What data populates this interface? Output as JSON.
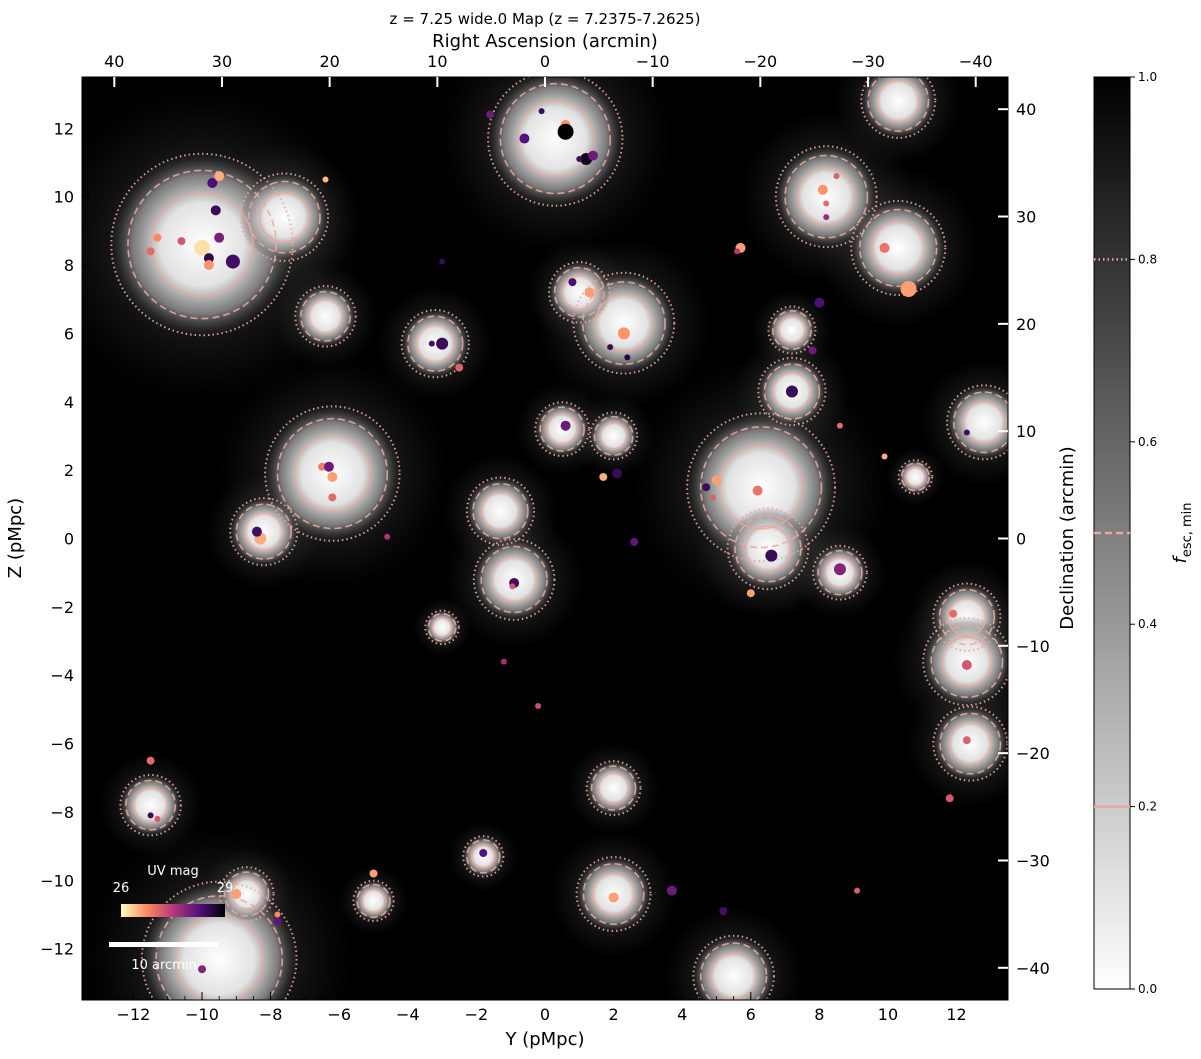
{
  "chart_data": {
    "type": "heatmap",
    "title": "z = 7.25 wide.0 Map (z = 7.2375-7.2625)",
    "xlabel": "Y (pMpc)",
    "ylabel": "Z (pMpc)",
    "top_xlabel": "Right Ascension (arcmin)",
    "right_ylabel": "Declination (arcmin)",
    "xlim": [
      -13.5,
      13.5
    ],
    "ylim": [
      -13.5,
      13.5
    ],
    "x_ticks": [
      "−12",
      "−10",
      "−8",
      "−6",
      "−4",
      "−2",
      "0",
      "2",
      "4",
      "6",
      "8",
      "10",
      "12"
    ],
    "y_ticks": [
      "−12",
      "−10",
      "−8",
      "−6",
      "−4",
      "−2",
      "0",
      "2",
      "4",
      "6",
      "8",
      "10",
      "12"
    ],
    "top_ticks": [
      "40",
      "30",
      "20",
      "10",
      "0",
      "−10",
      "−20",
      "−30",
      "−40"
    ],
    "right_ticks": [
      "40",
      "30",
      "20",
      "10",
      "0",
      "−10",
      "−20",
      "−30",
      "−40"
    ],
    "colorbar": {
      "label": "f_esc, min",
      "label_main": "f",
      "label_sub": "esc, min",
      "range": [
        0,
        1
      ],
      "ticks": [
        "0.0",
        "0.2",
        "0.4",
        "0.6",
        "0.8",
        "1.0"
      ],
      "contour_levels": [
        0.2,
        0.5,
        0.8
      ],
      "contour_styles": [
        "solid",
        "dashed",
        "dotted"
      ]
    },
    "uv_colorbar": {
      "label": "UV mag",
      "min": "26",
      "max": "29"
    },
    "scale_bar": {
      "label": "10 arcmin"
    },
    "regions": [
      {
        "x": -10.0,
        "y": 8.6,
        "r": 2.7
      },
      {
        "x": -7.6,
        "y": 9.4,
        "r": 1.3
      },
      {
        "x": 0.3,
        "y": 11.7,
        "r": 2.0
      },
      {
        "x": -6.2,
        "y": 1.9,
        "r": 2.0
      },
      {
        "x": -8.2,
        "y": 0.2,
        "r": 1.0
      },
      {
        "x": 2.3,
        "y": 6.3,
        "r": 1.5
      },
      {
        "x": 1.0,
        "y": 7.2,
        "r": 0.9
      },
      {
        "x": 6.3,
        "y": 1.5,
        "r": 2.2
      },
      {
        "x": 6.5,
        "y": -0.3,
        "r": 1.2
      },
      {
        "x": 8.2,
        "y": 10.0,
        "r": 1.5
      },
      {
        "x": 10.3,
        "y": 12.8,
        "r": 1.1
      },
      {
        "x": 10.3,
        "y": 8.5,
        "r": 1.4
      },
      {
        "x": 7.2,
        "y": 4.3,
        "r": 1.0
      },
      {
        "x": 7.2,
        "y": 6.1,
        "r": 0.7
      },
      {
        "x": 12.8,
        "y": 3.4,
        "r": 1.1
      },
      {
        "x": 12.3,
        "y": -2.3,
        "r": 1.0
      },
      {
        "x": 12.3,
        "y": -3.6,
        "r": 1.3
      },
      {
        "x": 12.4,
        "y": -6.0,
        "r": 1.1
      },
      {
        "x": -0.9,
        "y": -1.2,
        "r": 1.2
      },
      {
        "x": -1.3,
        "y": 0.8,
        "r": 1.0
      },
      {
        "x": -3.2,
        "y": 5.7,
        "r": 1.0
      },
      {
        "x": -6.4,
        "y": 6.5,
        "r": 0.9
      },
      {
        "x": -11.5,
        "y": -7.8,
        "r": 0.9
      },
      {
        "x": -9.5,
        "y": -12.3,
        "r": 2.3
      },
      {
        "x": -8.7,
        "y": -10.4,
        "r": 0.8
      },
      {
        "x": 2.0,
        "y": -10.4,
        "r": 1.1
      },
      {
        "x": 5.5,
        "y": -12.8,
        "r": 1.2
      },
      {
        "x": 2.0,
        "y": 3.0,
        "r": 0.7
      },
      {
        "x": 0.5,
        "y": 3.2,
        "r": 0.8
      },
      {
        "x": 8.6,
        "y": -1.0,
        "r": 0.8
      },
      {
        "x": 10.8,
        "y": 1.8,
        "r": 0.5
      },
      {
        "x": -1.8,
        "y": -9.3,
        "r": 0.6
      },
      {
        "x": 2.0,
        "y": -7.3,
        "r": 0.8
      },
      {
        "x": -5.0,
        "y": -10.6,
        "r": 0.6
      },
      {
        "x": -3.0,
        "y": -2.6,
        "r": 0.5
      }
    ],
    "galaxies": [
      {
        "x": -10.0,
        "y": 8.5,
        "mag": 26.2,
        "s": 8
      },
      {
        "x": -10.6,
        "y": 8.7,
        "mag": 27.4,
        "s": 4
      },
      {
        "x": -9.8,
        "y": 8.2,
        "mag": 29.0,
        "s": 5
      },
      {
        "x": -9.1,
        "y": 8.1,
        "mag": 28.8,
        "s": 7
      },
      {
        "x": -9.6,
        "y": 9.6,
        "mag": 28.9,
        "s": 5
      },
      {
        "x": -9.7,
        "y": 10.4,
        "mag": 28.7,
        "s": 5
      },
      {
        "x": -9.5,
        "y": 10.6,
        "mag": 26.6,
        "s": 5
      },
      {
        "x": -11.3,
        "y": 8.8,
        "mag": 26.9,
        "s": 4
      },
      {
        "x": -11.5,
        "y": 8.4,
        "mag": 27.2,
        "s": 4
      },
      {
        "x": -9.8,
        "y": 8.0,
        "mag": 26.8,
        "s": 5
      },
      {
        "x": -9.5,
        "y": 8.8,
        "mag": 28.3,
        "s": 5
      },
      {
        "x": -6.4,
        "y": 10.5,
        "mag": 26.5,
        "s": 3
      },
      {
        "x": 0.6,
        "y": 12.1,
        "mag": 26.8,
        "s": 5
      },
      {
        "x": 0.6,
        "y": 11.9,
        "mag": 29.5,
        "s": 8
      },
      {
        "x": 1.2,
        "y": 11.1,
        "mag": 29.3,
        "s": 6
      },
      {
        "x": 1.4,
        "y": 11.2,
        "mag": 28.4,
        "s": 5
      },
      {
        "x": -0.6,
        "y": 11.7,
        "mag": 28.6,
        "s": 5
      },
      {
        "x": 1.0,
        "y": 11.1,
        "mag": 28.9,
        "s": 3
      },
      {
        "x": -0.1,
        "y": 12.5,
        "mag": 28.9,
        "s": 3
      },
      {
        "x": -1.6,
        "y": 12.4,
        "mag": 28.4,
        "s": 4
      },
      {
        "x": 2.3,
        "y": 6.0,
        "mag": 26.8,
        "s": 6
      },
      {
        "x": 1.3,
        "y": 7.2,
        "mag": 26.7,
        "s": 5
      },
      {
        "x": 0.8,
        "y": 7.5,
        "mag": 28.7,
        "s": 4
      },
      {
        "x": 1.9,
        "y": 5.6,
        "mag": 28.9,
        "s": 3
      },
      {
        "x": 2.4,
        "y": 5.3,
        "mag": 29.1,
        "s": 3
      },
      {
        "x": -3.0,
        "y": 5.7,
        "mag": 28.9,
        "s": 6
      },
      {
        "x": -3.3,
        "y": 5.7,
        "mag": 28.8,
        "s": 3
      },
      {
        "x": -2.5,
        "y": 5.0,
        "mag": 27.3,
        "s": 4
      },
      {
        "x": -3.0,
        "y": 8.1,
        "mag": 28.9,
        "s": 3
      },
      {
        "x": -6.5,
        "y": 2.1,
        "mag": 27.0,
        "s": 4
      },
      {
        "x": -6.3,
        "y": 2.1,
        "mag": 28.4,
        "s": 5
      },
      {
        "x": -6.2,
        "y": 1.8,
        "mag": 26.7,
        "s": 5
      },
      {
        "x": -6.2,
        "y": 1.2,
        "mag": 27.2,
        "s": 4
      },
      {
        "x": -8.3,
        "y": 0.0,
        "mag": 26.6,
        "s": 6
      },
      {
        "x": -8.4,
        "y": 0.2,
        "mag": 28.8,
        "s": 5
      },
      {
        "x": -4.6,
        "y": 0.05,
        "mag": 27.8,
        "s": 3
      },
      {
        "x": 0.6,
        "y": 3.3,
        "mag": 28.4,
        "s": 5
      },
      {
        "x": 1.7,
        "y": 1.8,
        "mag": 26.6,
        "s": 4
      },
      {
        "x": 2.1,
        "y": 1.9,
        "mag": 28.9,
        "s": 5
      },
      {
        "x": 2.6,
        "y": -0.1,
        "mag": 28.5,
        "s": 4
      },
      {
        "x": 5.0,
        "y": 1.7,
        "mag": 26.7,
        "s": 5
      },
      {
        "x": 4.7,
        "y": 1.5,
        "mag": 28.9,
        "s": 4
      },
      {
        "x": 4.9,
        "y": 1.2,
        "mag": 27.3,
        "s": 3
      },
      {
        "x": 6.2,
        "y": 1.4,
        "mag": 27.1,
        "s": 5
      },
      {
        "x": 6.6,
        "y": -0.5,
        "mag": 28.9,
        "s": 6
      },
      {
        "x": 6.0,
        "y": -1.6,
        "mag": 26.7,
        "s": 4
      },
      {
        "x": 8.6,
        "y": -0.9,
        "mag": 28.2,
        "s": 6
      },
      {
        "x": 8.6,
        "y": 3.3,
        "mag": 27.2,
        "s": 3
      },
      {
        "x": 9.9,
        "y": 2.4,
        "mag": 26.6,
        "s": 3
      },
      {
        "x": 12.3,
        "y": 3.1,
        "mag": 28.8,
        "s": 3
      },
      {
        "x": 7.2,
        "y": 4.3,
        "mag": 28.9,
        "s": 6
      },
      {
        "x": 7.8,
        "y": 5.5,
        "mag": 28.4,
        "s": 4
      },
      {
        "x": 8.0,
        "y": 6.9,
        "mag": 28.7,
        "s": 5
      },
      {
        "x": 10.6,
        "y": 7.3,
        "mag": 26.7,
        "s": 8
      },
      {
        "x": 9.9,
        "y": 8.5,
        "mag": 27.1,
        "s": 5
      },
      {
        "x": 8.1,
        "y": 10.2,
        "mag": 26.8,
        "s": 5
      },
      {
        "x": 8.2,
        "y": 9.8,
        "mag": 27.2,
        "s": 3
      },
      {
        "x": 8.5,
        "y": 10.6,
        "mag": 27.3,
        "s": 3
      },
      {
        "x": 8.2,
        "y": 9.4,
        "mag": 28.0,
        "s": 3
      },
      {
        "x": 5.7,
        "y": 8.5,
        "mag": 26.7,
        "s": 5
      },
      {
        "x": 5.6,
        "y": 8.4,
        "mag": 27.8,
        "s": 3
      },
      {
        "x": 11.9,
        "y": -2.2,
        "mag": 27.2,
        "s": 4
      },
      {
        "x": 12.3,
        "y": -3.7,
        "mag": 27.4,
        "s": 5
      },
      {
        "x": 12.3,
        "y": -5.9,
        "mag": 27.3,
        "s": 4
      },
      {
        "x": 11.8,
        "y": -7.6,
        "mag": 27.4,
        "s": 4
      },
      {
        "x": -0.9,
        "y": -1.3,
        "mag": 28.8,
        "s": 5
      },
      {
        "x": -0.95,
        "y": -1.4,
        "mag": 27.4,
        "s": 3
      },
      {
        "x": -1.2,
        "y": -3.6,
        "mag": 27.9,
        "s": 3
      },
      {
        "x": -0.2,
        "y": -4.9,
        "mag": 27.5,
        "s": 3
      },
      {
        "x": -11.5,
        "y": -6.5,
        "mag": 27.2,
        "s": 4
      },
      {
        "x": -11.5,
        "y": -8.1,
        "mag": 28.9,
        "s": 3
      },
      {
        "x": -11.3,
        "y": -8.2,
        "mag": 27.4,
        "s": 3
      },
      {
        "x": -9.0,
        "y": -10.4,
        "mag": 26.7,
        "s": 5
      },
      {
        "x": -7.8,
        "y": -11.2,
        "mag": 28.5,
        "s": 4
      },
      {
        "x": -7.8,
        "y": -11.0,
        "mag": 26.9,
        "s": 3
      },
      {
        "x": -5.0,
        "y": -9.8,
        "mag": 26.7,
        "s": 4
      },
      {
        "x": -1.8,
        "y": -9.2,
        "mag": 28.6,
        "s": 4
      },
      {
        "x": 2.0,
        "y": -10.5,
        "mag": 26.7,
        "s": 5
      },
      {
        "x": 3.7,
        "y": -10.3,
        "mag": 28.4,
        "s": 5
      },
      {
        "x": 5.2,
        "y": -10.9,
        "mag": 28.8,
        "s": 4
      },
      {
        "x": 9.1,
        "y": -10.3,
        "mag": 27.3,
        "s": 3
      },
      {
        "x": -10.0,
        "y": -12.6,
        "mag": 28.2,
        "s": 4
      }
    ]
  }
}
